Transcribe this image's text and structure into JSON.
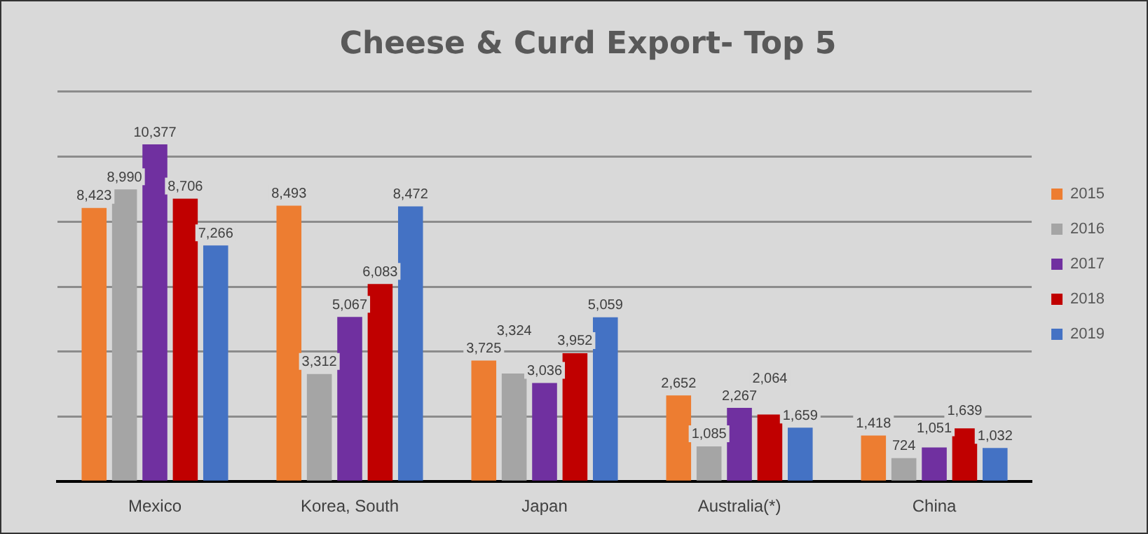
{
  "chart_data": {
    "type": "bar",
    "title": "Cheese & Curd Export- Top 5",
    "categories": [
      "Mexico",
      "Korea, South",
      "Japan",
      "Australia(*)",
      "China"
    ],
    "series": [
      {
        "name": "2015",
        "color": "#ed7d31",
        "values": [
          8423,
          8493,
          3725,
          2652,
          1418
        ],
        "value_labels": [
          "8,423",
          "8,493",
          "3,725",
          "2,652",
          "1,418"
        ]
      },
      {
        "name": "2016",
        "color": "#a5a5a5",
        "values": [
          8990,
          3312,
          3324,
          1085,
          724
        ],
        "value_labels": [
          "8,990",
          "3,312",
          "3,324",
          "1,085",
          "724"
        ]
      },
      {
        "name": "2017",
        "color": "#7030a0",
        "values": [
          10377,
          5067,
          3036,
          2267,
          1051
        ],
        "value_labels": [
          "10,377",
          "5,067",
          "3,036",
          "2,267",
          "1,051"
        ]
      },
      {
        "name": "2018",
        "color": "#c00000",
        "values": [
          8706,
          6083,
          3952,
          2064,
          1639
        ],
        "value_labels": [
          "8,706",
          "6,083",
          "3,952",
          "2,064",
          "1,639"
        ]
      },
      {
        "name": "2019",
        "color": "#4472c4",
        "values": [
          7266,
          8472,
          5059,
          1659,
          1032
        ],
        "value_labels": [
          "7,266",
          "8,472",
          "5,059",
          "1,659",
          "1,032"
        ]
      }
    ],
    "ylim": [
      0,
      12000
    ],
    "yticks": [
      {
        "value": 0,
        "label": null
      },
      {
        "value": 2000,
        "label": null
      },
      {
        "value": 4000,
        "label": null
      },
      {
        "value": 6000,
        "label": null
      },
      {
        "value": 8000,
        "label": null
      },
      {
        "value": 10000,
        "label": null
      },
      {
        "value": 12000,
        "label": null
      }
    ],
    "tick_labels": "x",
    "grid": "y",
    "legend": "right"
  }
}
